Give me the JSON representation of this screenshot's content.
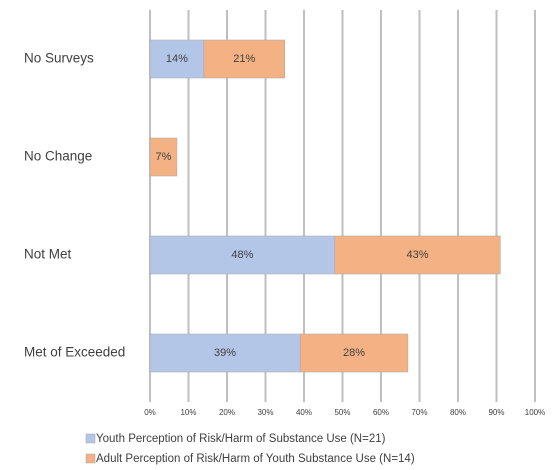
{
  "chart_data": {
    "type": "stacked-bar-horizontal",
    "categories": [
      "No Surveys",
      "No Change",
      "Not Met",
      "Met of Exceeded"
    ],
    "series": [
      {
        "name": "Youth Perception of Risk/Harm of Substance Use (N=21)",
        "color": "#b4c6e7",
        "values": [
          14,
          null,
          48,
          39
        ],
        "value_labels": [
          "14%",
          null,
          "48%",
          "39%"
        ]
      },
      {
        "name": "Adult Perception of Risk/Harm of Youth Substance Use (N=14)",
        "color": "#f4b183",
        "values": [
          21,
          7,
          43,
          28
        ],
        "value_labels": [
          "21%",
          "7%",
          "43%",
          "28%"
        ]
      }
    ],
    "xlim": [
      0,
      100
    ],
    "xticks": [
      {
        "value": 0,
        "label": "0%"
      },
      {
        "value": 10,
        "label": "10%"
      },
      {
        "value": 20,
        "label": "20%"
      },
      {
        "value": 30,
        "label": "30%"
      },
      {
        "value": 40,
        "label": "40%"
      },
      {
        "value": 50,
        "label": "50%"
      },
      {
        "value": 60,
        "label": "60%"
      },
      {
        "value": 70,
        "label": "70%"
      },
      {
        "value": 80,
        "label": "80%"
      },
      {
        "value": 90,
        "label": "90%"
      },
      {
        "value": 100,
        "label": "100%"
      }
    ],
    "grid": true,
    "legend": "bottom"
  }
}
